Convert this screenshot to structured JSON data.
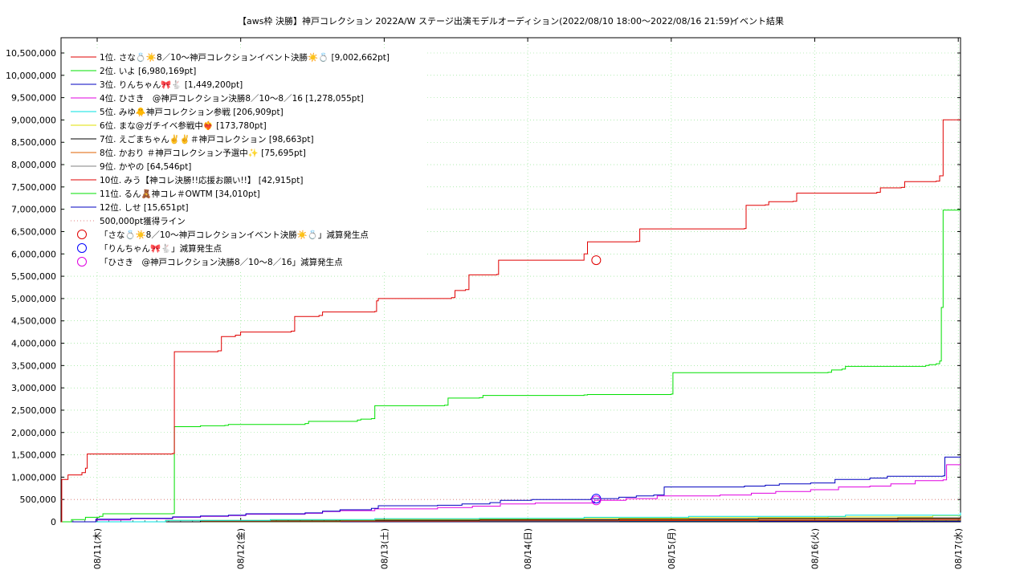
{
  "chart_data": {
    "type": "line",
    "title": "【aws枠 決勝】神戸コレクション 2022A/W ステージ出演モデルオーディション(2022/08/10 18:00～2022/08/16 21:59)",
    "subtitle": "イベント結果",
    "xlabel": "",
    "ylabel": "",
    "x_start": "2022/08/10 18:00",
    "x_end": "2022/08/16 21:59",
    "x_ticks": [
      "08/11(木)",
      "08/12(金)",
      "08/13(土)",
      "08/14(日)",
      "08/15(月)",
      "08/16(火)",
      "08/17(水)"
    ],
    "ylim": [
      0,
      10500000
    ],
    "y_ticks": [
      "0",
      "500,000",
      "1,000,000",
      "1,500,000",
      "2,000,000",
      "2,500,000",
      "3,000,000",
      "3,500,000",
      "4,000,000",
      "4,500,000",
      "5,000,000",
      "5,500,000",
      "6,000,000",
      "6,500,000",
      "7,000,000",
      "7,500,000",
      "8,000,000",
      "8,500,000",
      "9,000,000",
      "9,500,000",
      "10,000,000",
      "10,500,000"
    ],
    "grid": true,
    "legend_position": "top-left",
    "colors": {
      "s1": "#e00000",
      "s2": "#00e000",
      "s3": "#0000c0",
      "s4": "#e000e0",
      "s5": "#00e0e0",
      "s6": "#e0e000",
      "s7": "#000000",
      "s8": "#e06000",
      "s9": "#808080",
      "s10": "#e00000",
      "s11": "#00e000",
      "s12": "#0000c0",
      "line500k": "#e08080",
      "grid": "#80e080"
    },
    "series": [
      {
        "name": "1位. さな💍☀️8／10〜神戸コレクションイベント決勝☀️💍 [9,002,662pt]",
        "color": "#e00000",
        "points": [
          [
            0,
            0
          ],
          [
            0.02,
            950000
          ],
          [
            0.2,
            1050000
          ],
          [
            0.6,
            1100000
          ],
          [
            0.7,
            1200000
          ],
          [
            0.75,
            1520000
          ],
          [
            3.2,
            1530000
          ],
          [
            3.25,
            3810000
          ],
          [
            4.5,
            3830000
          ],
          [
            4.6,
            4150000
          ],
          [
            5.0,
            4180000
          ],
          [
            5.15,
            4250000
          ],
          [
            6.6,
            4270000
          ],
          [
            6.7,
            4600000
          ],
          [
            7.4,
            4620000
          ],
          [
            7.5,
            4700000
          ],
          [
            9.0,
            4710000
          ],
          [
            9.05,
            4950000
          ],
          [
            9.1,
            5000000
          ],
          [
            11.2,
            5020000
          ],
          [
            11.3,
            5180000
          ],
          [
            11.6,
            5200000
          ],
          [
            11.7,
            5530000
          ],
          [
            12.5,
            5540000
          ],
          [
            12.55,
            5860000
          ],
          [
            14.9,
            5860000
          ],
          [
            15.0,
            6000000
          ],
          [
            15.1,
            6270000
          ],
          [
            16.5,
            6280000
          ],
          [
            16.6,
            6560000
          ],
          [
            19.6,
            6570000
          ],
          [
            19.65,
            7090000
          ],
          [
            20.2,
            7100000
          ],
          [
            20.3,
            7170000
          ],
          [
            21.0,
            7180000
          ],
          [
            21.1,
            7360000
          ],
          [
            23.4,
            7380000
          ],
          [
            23.5,
            7480000
          ],
          [
            24.1,
            7490000
          ],
          [
            24.2,
            7620000
          ],
          [
            25.1,
            7630000
          ],
          [
            25.2,
            7750000
          ],
          [
            25.3,
            9002662
          ],
          [
            25.8,
            9002662
          ]
        ]
      },
      {
        "name": "2位. いよ [6,980,169pt]",
        "color": "#00e000",
        "points": [
          [
            0,
            0
          ],
          [
            0.3,
            50000
          ],
          [
            0.7,
            100000
          ],
          [
            1.1,
            120000
          ],
          [
            1.2,
            180000
          ],
          [
            3.2,
            185000
          ],
          [
            3.25,
            2130000
          ],
          [
            4.0,
            2150000
          ],
          [
            4.7,
            2160000
          ],
          [
            4.8,
            2180000
          ],
          [
            7.0,
            2200000
          ],
          [
            7.1,
            2250000
          ],
          [
            8.5,
            2280000
          ],
          [
            8.6,
            2300000
          ],
          [
            8.9,
            2310000
          ],
          [
            9.0,
            2600000
          ],
          [
            11.0,
            2610000
          ],
          [
            11.1,
            2770000
          ],
          [
            12.0,
            2780000
          ],
          [
            12.1,
            2830000
          ],
          [
            15.0,
            2840000
          ],
          [
            15.1,
            2850000
          ],
          [
            17.5,
            2860000
          ],
          [
            17.55,
            3340000
          ],
          [
            22.0,
            3350000
          ],
          [
            22.1,
            3400000
          ],
          [
            22.4,
            3420000
          ],
          [
            22.5,
            3480000
          ],
          [
            24.8,
            3500000
          ],
          [
            24.9,
            3520000
          ],
          [
            25.1,
            3540000
          ],
          [
            25.2,
            3600000
          ],
          [
            25.25,
            4800000
          ],
          [
            25.3,
            6980169
          ],
          [
            25.8,
            6980169
          ]
        ]
      },
      {
        "name": "3位. りんちゃん🎀🐇 [1,449,200pt]",
        "color": "#0000c0",
        "points": [
          [
            0,
            0
          ],
          [
            1.0,
            60000
          ],
          [
            2.0,
            80000
          ],
          [
            3.2,
            110000
          ],
          [
            4.0,
            130000
          ],
          [
            4.8,
            150000
          ],
          [
            5.3,
            180000
          ],
          [
            7.0,
            200000
          ],
          [
            7.5,
            240000
          ],
          [
            8.0,
            270000
          ],
          [
            8.9,
            300000
          ],
          [
            9.1,
            360000
          ],
          [
            10.8,
            370000
          ],
          [
            11.5,
            400000
          ],
          [
            12.3,
            430000
          ],
          [
            12.6,
            480000
          ],
          [
            13.5,
            500000
          ],
          [
            15.2,
            520000
          ],
          [
            16.0,
            550000
          ],
          [
            16.5,
            580000
          ],
          [
            17.0,
            600000
          ],
          [
            17.3,
            780000
          ],
          [
            19.6,
            800000
          ],
          [
            20.2,
            820000
          ],
          [
            20.6,
            850000
          ],
          [
            21.5,
            870000
          ],
          [
            22.2,
            950000
          ],
          [
            23.2,
            980000
          ],
          [
            23.7,
            1020000
          ],
          [
            25.3,
            1030000
          ],
          [
            25.35,
            1449200
          ],
          [
            25.8,
            1449200
          ]
        ]
      },
      {
        "name": "4位. ひさき　@神戸コレクション決勝8／10〜8／16 [1,278,055pt]",
        "color": "#e000e0",
        "points": [
          [
            0,
            0
          ],
          [
            1.0,
            40000
          ],
          [
            2.0,
            70000
          ],
          [
            3.2,
            100000
          ],
          [
            4.0,
            120000
          ],
          [
            4.8,
            140000
          ],
          [
            5.3,
            170000
          ],
          [
            7.0,
            190000
          ],
          [
            7.5,
            230000
          ],
          [
            8.0,
            250000
          ],
          [
            9.0,
            290000
          ],
          [
            10.8,
            320000
          ],
          [
            11.8,
            350000
          ],
          [
            12.6,
            400000
          ],
          [
            13.6,
            420000
          ],
          [
            15.3,
            480000
          ],
          [
            16.2,
            520000
          ],
          [
            17.1,
            580000
          ],
          [
            18.9,
            600000
          ],
          [
            19.8,
            640000
          ],
          [
            20.5,
            680000
          ],
          [
            21.5,
            720000
          ],
          [
            22.3,
            780000
          ],
          [
            23.2,
            800000
          ],
          [
            23.8,
            850000
          ],
          [
            24.5,
            920000
          ],
          [
            25.3,
            940000
          ],
          [
            25.4,
            1278055
          ],
          [
            25.8,
            1278055
          ]
        ]
      },
      {
        "name": "5位. みゆ🐥神戸コレクション参戦 [206,909pt]",
        "color": "#00e0e0",
        "points": [
          [
            0,
            0
          ],
          [
            3.0,
            30000
          ],
          [
            6.0,
            50000
          ],
          [
            9.0,
            70000
          ],
          [
            12.0,
            80000
          ],
          [
            15.0,
            100000
          ],
          [
            18.0,
            120000
          ],
          [
            22.5,
            150000
          ],
          [
            25.8,
            206909
          ]
        ]
      },
      {
        "name": "6位. まな@ガチイベ参戦中❤️‍🔥 [173,780pt]",
        "color": "#e0e000",
        "points": [
          [
            0,
            0
          ],
          [
            3.0,
            30000
          ],
          [
            6.0,
            40000
          ],
          [
            9.0,
            55000
          ],
          [
            12.0,
            65000
          ],
          [
            15.0,
            80000
          ],
          [
            18.0,
            95000
          ],
          [
            22.0,
            110000
          ],
          [
            25.0,
            140000
          ],
          [
            25.8,
            173780
          ]
        ]
      },
      {
        "name": "7位. えごまちゃん✌️✌️＃神戸コレクション [98,663pt]",
        "color": "#000000",
        "points": [
          [
            0,
            0
          ],
          [
            4.0,
            20000
          ],
          [
            8.0,
            35000
          ],
          [
            12.0,
            50000
          ],
          [
            16.0,
            65000
          ],
          [
            20.0,
            75000
          ],
          [
            24.0,
            85000
          ],
          [
            25.8,
            98663
          ]
        ]
      },
      {
        "name": "8位. かおり ＃神戸コレクション予選中✨ [75,695pt]",
        "color": "#e06000",
        "points": [
          [
            0,
            0
          ],
          [
            4.0,
            15000
          ],
          [
            8.0,
            30000
          ],
          [
            12.0,
            40000
          ],
          [
            16.0,
            50000
          ],
          [
            20.0,
            60000
          ],
          [
            24.0,
            70000
          ],
          [
            25.8,
            75695
          ]
        ]
      },
      {
        "name": "9位. かやの [64,546pt]",
        "color": "#808080",
        "points": [
          [
            0,
            0
          ],
          [
            4.0,
            12000
          ],
          [
            8.0,
            25000
          ],
          [
            12.0,
            35000
          ],
          [
            16.0,
            45000
          ],
          [
            20.0,
            52000
          ],
          [
            24.0,
            58000
          ],
          [
            25.8,
            64546
          ]
        ]
      },
      {
        "name": "10位. みう【神コレ決勝!!応援お願い!!】 [42,915pt]",
        "color": "#e00000",
        "points": [
          [
            0,
            0
          ],
          [
            4.0,
            8000
          ],
          [
            8.0,
            15000
          ],
          [
            12.0,
            22000
          ],
          [
            16.0,
            28000
          ],
          [
            20.0,
            33000
          ],
          [
            24.0,
            38000
          ],
          [
            25.8,
            42915
          ]
        ]
      },
      {
        "name": "11位. るん🧸神コレ＃OWTM [34,010pt]",
        "color": "#00e000",
        "points": [
          [
            0,
            0
          ],
          [
            4.0,
            6000
          ],
          [
            8.0,
            12000
          ],
          [
            12.0,
            18000
          ],
          [
            16.0,
            23000
          ],
          [
            20.0,
            27000
          ],
          [
            24.0,
            31000
          ],
          [
            25.8,
            34010
          ]
        ]
      },
      {
        "name": "12位. しせ [15,651pt]",
        "color": "#0000c0",
        "points": [
          [
            0,
            0
          ],
          [
            4.0,
            3000
          ],
          [
            8.0,
            6000
          ],
          [
            12.0,
            8000
          ],
          [
            16.0,
            10000
          ],
          [
            20.0,
            12000
          ],
          [
            24.0,
            14000
          ],
          [
            25.8,
            15651
          ]
        ]
      }
    ],
    "reference_line": {
      "name": "500,000pt獲得ライン",
      "value": 500000,
      "color": "#e08080"
    },
    "markers": [
      {
        "name": "「さな💍☀️8／10〜神戸コレクションイベント決勝☀️💍」減算発生点",
        "x": 15.35,
        "y": 5860000,
        "color": "#e00000"
      },
      {
        "name": "「りんちゃん🎀🐇」減算発生点",
        "x": 15.35,
        "y": 520000,
        "color": "#0000ff"
      },
      {
        "name": "「ひさき　@神戸コレクション決勝8／10〜8／16」減算発生点",
        "x": 15.35,
        "y": 480000,
        "color": "#e000e0"
      }
    ]
  }
}
